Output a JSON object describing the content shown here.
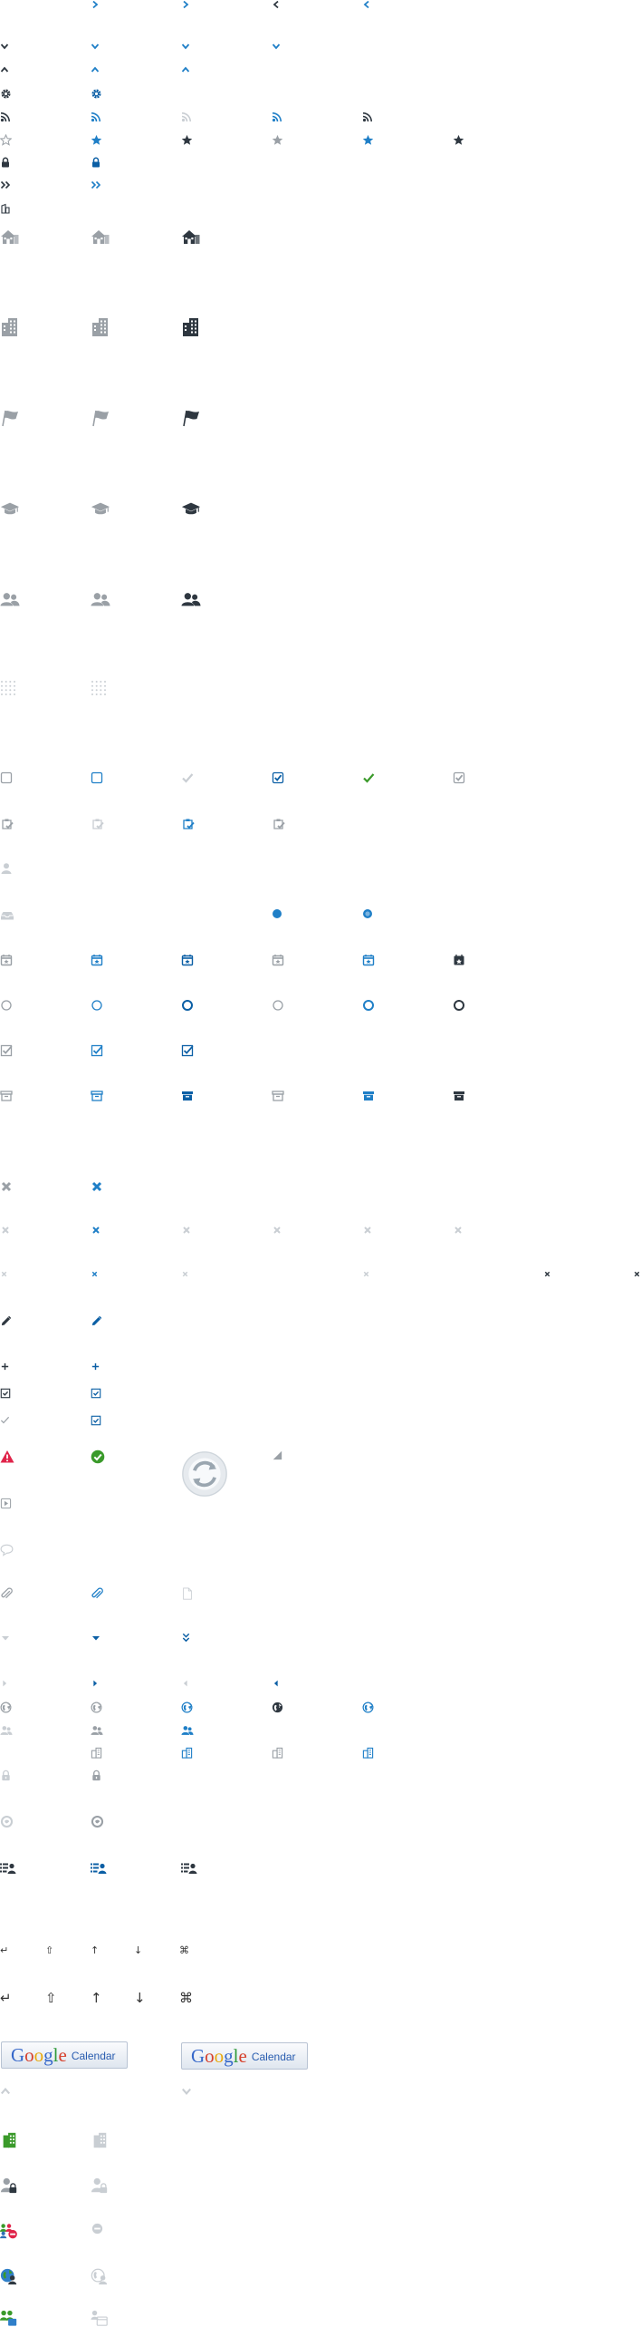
{
  "colors": {
    "gray": "#9aa0a6",
    "light_gray": "#c9ced3",
    "blue": "#1f7fc7",
    "dark_blue": "#0b5fa5",
    "dark": "#2e3740",
    "green": "#3a9a2a",
    "red": "#e0244a"
  },
  "keyboard_symbols": {
    "small": [
      "↵",
      "⇧",
      "↑",
      "↓",
      "⌘"
    ],
    "large": [
      "↵",
      "⇧",
      "↑",
      "↓",
      "⌘"
    ]
  },
  "google_calendar_buttons": [
    {
      "logo_letters": [
        "G",
        "o",
        "o",
        "g",
        "l",
        "e"
      ],
      "label": "Calendar"
    },
    {
      "logo_letters": [
        "G",
        "o",
        "o",
        "g",
        "l",
        "e"
      ],
      "label": "Calendar"
    }
  ],
  "google_letter_colors": [
    "#3466c9",
    "#d6402c",
    "#e8a90f",
    "#3466c9",
    "#2f9a3a",
    "#d6402c"
  ],
  "icon_sheet": [
    "chevron-right-icon",
    "chevron-left-icon",
    "chevron-down-icon",
    "chevron-up-icon",
    "gear-icon",
    "rss-icon",
    "star-icon",
    "lock-icon",
    "double-chevron-right-icon",
    "building-icon",
    "house-icon",
    "office-building-icon",
    "flag-icon",
    "graduation-cap-icon",
    "users-icon",
    "dot-grid-icon",
    "checkbox-icon",
    "checkmark-icon",
    "clipboard-check-icon",
    "person-icon",
    "tray-icon",
    "radio-dot-icon",
    "calendar-star-icon",
    "circle-icon",
    "checked-box-icon",
    "archive-box-icon",
    "close-icon",
    "pencil-icon",
    "plus-icon",
    "task-box-icon",
    "warning-icon",
    "success-icon",
    "refresh-icon",
    "corner-resize-icon",
    "play-box-icon",
    "speech-bubble-icon",
    "paperclip-icon",
    "document-icon",
    "caret-down-icon",
    "double-caret-down-icon",
    "caret-right-icon",
    "caret-left-icon",
    "globe-icon",
    "user-list-icon",
    "no-entry-icon",
    "group-calendar-icon"
  ]
}
